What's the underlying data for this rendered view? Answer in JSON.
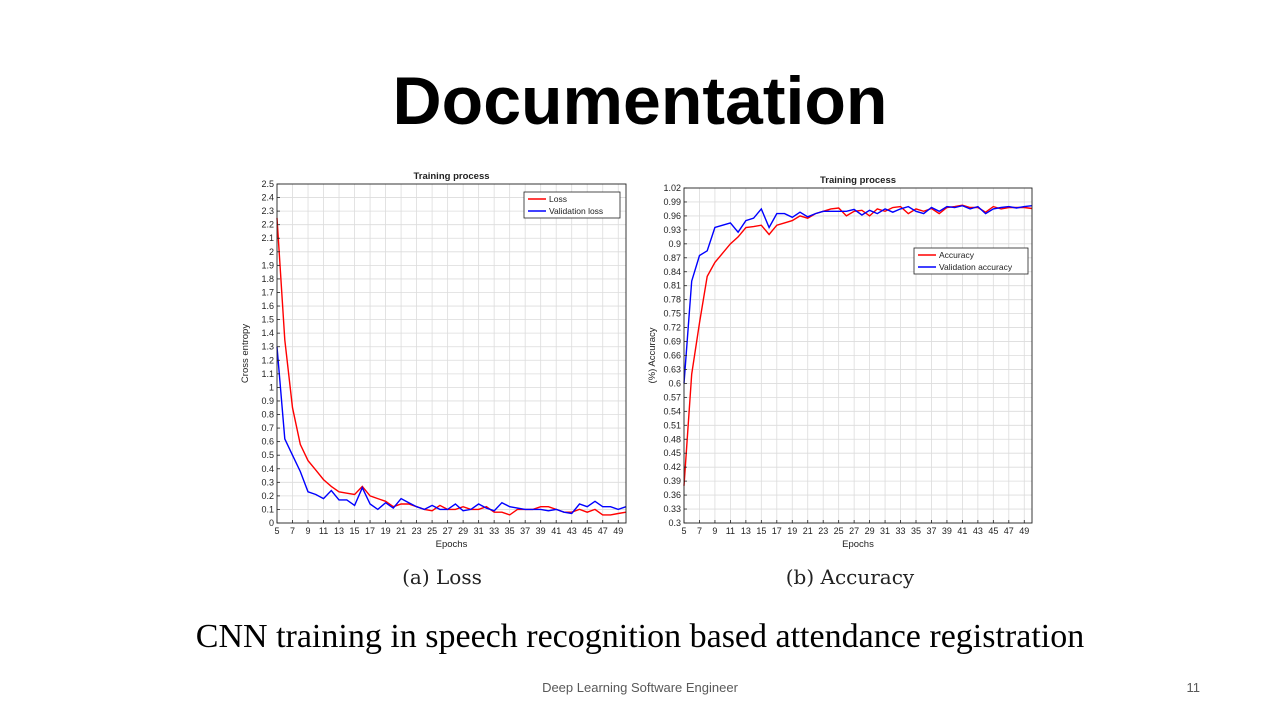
{
  "slide": {
    "title": "Documentation",
    "caption": "CNN training in speech recognition based attendance registration",
    "footer": "Deep Learning Software Engineer",
    "page_number": "11",
    "subcaption_a": "(a) Loss",
    "subcaption_b": "(b) Accuracy"
  },
  "chart_data": [
    {
      "type": "line",
      "title": "Training process",
      "xlabel": "Epochs",
      "ylabel": "Cross entropy",
      "xlim": [
        5,
        50
      ],
      "ylim": [
        0,
        2.5
      ],
      "x_ticks": [
        5,
        7,
        9,
        11,
        13,
        15,
        17,
        19,
        21,
        23,
        25,
        27,
        29,
        31,
        33,
        35,
        37,
        39,
        41,
        43,
        45,
        47,
        49
      ],
      "y_ticks": [
        0,
        0.1,
        0.2,
        0.3,
        0.4,
        0.5,
        0.6,
        0.7,
        0.8,
        0.9,
        1,
        1.1,
        1.2,
        1.3,
        1.4,
        1.5,
        1.6,
        1.7,
        1.8,
        1.9,
        2,
        2.1,
        2.2,
        2.3,
        2.4,
        2.5
      ],
      "grid": true,
      "legend_position": "top-right",
      "x": [
        5,
        6,
        7,
        8,
        9,
        10,
        11,
        12,
        13,
        14,
        15,
        16,
        17,
        18,
        19,
        20,
        21,
        22,
        23,
        24,
        25,
        26,
        27,
        28,
        29,
        30,
        31,
        32,
        33,
        34,
        35,
        36,
        37,
        38,
        39,
        40,
        41,
        42,
        43,
        44,
        45,
        46,
        47,
        48,
        49,
        50
      ],
      "series": [
        {
          "name": "Loss",
          "color": "#ff0000",
          "values": [
            2.25,
            1.35,
            0.85,
            0.58,
            0.46,
            0.39,
            0.32,
            0.27,
            0.23,
            0.22,
            0.21,
            0.27,
            0.2,
            0.18,
            0.16,
            0.12,
            0.14,
            0.14,
            0.12,
            0.1,
            0.09,
            0.13,
            0.1,
            0.1,
            0.12,
            0.1,
            0.1,
            0.12,
            0.08,
            0.08,
            0.06,
            0.1,
            0.1,
            0.1,
            0.12,
            0.12,
            0.1,
            0.08,
            0.08,
            0.1,
            0.08,
            0.1,
            0.06,
            0.06,
            0.07,
            0.08
          ]
        },
        {
          "name": "Validation loss",
          "color": "#0000ff",
          "values": [
            1.3,
            0.62,
            0.5,
            0.38,
            0.23,
            0.21,
            0.18,
            0.24,
            0.17,
            0.17,
            0.13,
            0.26,
            0.14,
            0.1,
            0.15,
            0.11,
            0.18,
            0.15,
            0.12,
            0.1,
            0.13,
            0.1,
            0.1,
            0.14,
            0.09,
            0.1,
            0.14,
            0.11,
            0.09,
            0.15,
            0.12,
            0.11,
            0.1,
            0.1,
            0.1,
            0.09,
            0.1,
            0.08,
            0.07,
            0.14,
            0.12,
            0.16,
            0.12,
            0.12,
            0.1,
            0.12
          ]
        }
      ]
    },
    {
      "type": "line",
      "title": "Training process",
      "xlabel": "Epochs",
      "ylabel": "(%) Accuracy",
      "xlim": [
        5,
        50
      ],
      "ylim": [
        0.3,
        1.02
      ],
      "x_ticks": [
        5,
        7,
        9,
        11,
        13,
        15,
        17,
        19,
        21,
        23,
        25,
        27,
        29,
        31,
        33,
        35,
        37,
        39,
        41,
        43,
        45,
        47,
        49
      ],
      "y_ticks": [
        0.3,
        0.33,
        0.36,
        0.39,
        0.42,
        0.45,
        0.48,
        0.51,
        0.54,
        0.57,
        0.6,
        0.63,
        0.66,
        0.69,
        0.72,
        0.75,
        0.78,
        0.81,
        0.84,
        0.87,
        0.9,
        0.93,
        0.96,
        0.99,
        1.02
      ],
      "grid": true,
      "legend_position": "center-right",
      "x": [
        5,
        6,
        7,
        8,
        9,
        10,
        11,
        12,
        13,
        14,
        15,
        16,
        17,
        18,
        19,
        20,
        21,
        22,
        23,
        24,
        25,
        26,
        27,
        28,
        29,
        30,
        31,
        32,
        33,
        34,
        35,
        36,
        37,
        38,
        39,
        40,
        41,
        42,
        43,
        44,
        45,
        46,
        47,
        48,
        49,
        50
      ],
      "series": [
        {
          "name": "Accuracy",
          "color": "#ff0000",
          "values": [
            0.38,
            0.62,
            0.73,
            0.83,
            0.86,
            0.88,
            0.9,
            0.915,
            0.935,
            0.937,
            0.94,
            0.92,
            0.94,
            0.945,
            0.95,
            0.96,
            0.955,
            0.965,
            0.97,
            0.975,
            0.977,
            0.96,
            0.97,
            0.972,
            0.96,
            0.975,
            0.97,
            0.978,
            0.98,
            0.965,
            0.975,
            0.97,
            0.976,
            0.965,
            0.978,
            0.98,
            0.983,
            0.978,
            0.978,
            0.968,
            0.98,
            0.975,
            0.978,
            0.978,
            0.978,
            0.976
          ]
        },
        {
          "name": "Validation accuracy",
          "color": "#0000ff",
          "values": [
            0.6,
            0.82,
            0.875,
            0.885,
            0.935,
            0.94,
            0.945,
            0.925,
            0.95,
            0.955,
            0.975,
            0.935,
            0.965,
            0.965,
            0.957,
            0.968,
            0.958,
            0.965,
            0.97,
            0.97,
            0.97,
            0.97,
            0.974,
            0.962,
            0.972,
            0.965,
            0.975,
            0.968,
            0.975,
            0.98,
            0.97,
            0.965,
            0.978,
            0.97,
            0.98,
            0.978,
            0.982,
            0.975,
            0.98,
            0.965,
            0.975,
            0.978,
            0.98,
            0.977,
            0.98,
            0.982
          ]
        }
      ]
    }
  ]
}
